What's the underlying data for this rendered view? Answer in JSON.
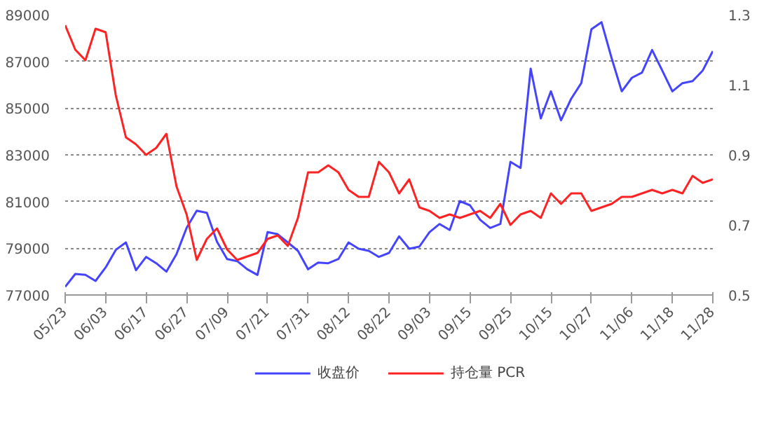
{
  "chart_data": {
    "type": "line",
    "categories": [
      "05/23",
      null,
      null,
      null,
      "06/03",
      null,
      null,
      null,
      "06/17",
      null,
      null,
      null,
      "06/27",
      null,
      null,
      null,
      "07/09",
      null,
      null,
      null,
      "07/21",
      null,
      null,
      null,
      "07/31",
      null,
      null,
      null,
      "08/12",
      null,
      null,
      null,
      "08/22",
      null,
      null,
      null,
      "09/03",
      null,
      null,
      null,
      "09/15",
      null,
      null,
      null,
      "09/25",
      null,
      null,
      null,
      "10/15",
      null,
      null,
      null,
      "10/27",
      null,
      null,
      null,
      "11/06",
      null,
      null,
      null,
      "11/18",
      null,
      null,
      null,
      "11/28"
    ],
    "series": [
      {
        "name": "收盘价",
        "color": "#4444ff",
        "values": [
          77350,
          77900,
          77860,
          77600,
          78180,
          78930,
          79250,
          78060,
          78630,
          78360,
          78000,
          78750,
          79870,
          80610,
          80520,
          79280,
          78540,
          78450,
          78100,
          77860,
          79690,
          79600,
          79250,
          78890,
          78100,
          78390,
          78360,
          78540,
          79250,
          78980,
          78890,
          78630,
          78800,
          79510,
          78980,
          79070,
          79690,
          80040,
          79780,
          81020,
          80840,
          80220,
          79870,
          80040,
          82700,
          82440,
          86690,
          84560,
          85720,
          84480,
          85400,
          86070,
          88380,
          88680,
          87140,
          85720,
          86300,
          86520,
          87490,
          86610,
          85720,
          86070,
          86160,
          86610,
          87440
        ]
      },
      {
        "name": "持仓量 PCR",
        "color": "#ff2222",
        "axis": "y2",
        "values": [
          1.27,
          1.2,
          1.17,
          1.26,
          1.25,
          1.07,
          0.95,
          0.93,
          0.9,
          0.92,
          0.96,
          0.81,
          0.73,
          0.6,
          0.66,
          0.69,
          0.63,
          0.6,
          0.61,
          0.62,
          0.66,
          0.67,
          0.64,
          0.72,
          0.85,
          0.85,
          0.87,
          0.85,
          0.8,
          0.78,
          0.78,
          0.88,
          0.85,
          0.79,
          0.83,
          0.75,
          0.74,
          0.72,
          0.73,
          0.72,
          0.73,
          0.74,
          0.72,
          0.76,
          0.7,
          0.73,
          0.74,
          0.72,
          0.79,
          0.76,
          0.79,
          0.79,
          0.74,
          0.75,
          0.76,
          0.78,
          0.78,
          0.79,
          0.8,
          0.79,
          0.8,
          0.79,
          0.84,
          0.82,
          0.83
        ]
      }
    ],
    "ylim": [
      77000,
      89000
    ],
    "yticks": [
      77000,
      79000,
      81000,
      83000,
      85000,
      87000,
      89000
    ],
    "y2lim": [
      0.5,
      1.3
    ],
    "y2ticks": [
      0.5,
      0.7,
      0.9,
      1.1,
      1.3
    ],
    "grid": "y",
    "legend": "bottom",
    "marker": "none",
    "line_style": "solid"
  }
}
